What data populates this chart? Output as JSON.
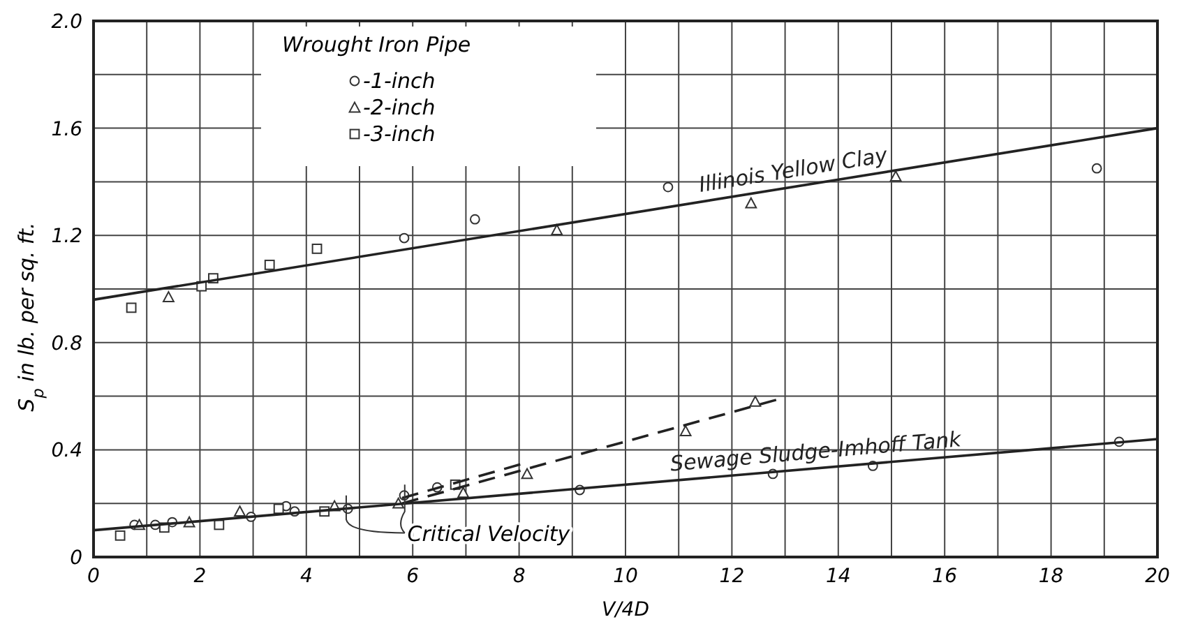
{
  "chart_data": {
    "type": "scatter",
    "xlabel": "V/4D",
    "ylabel": "S$_{p}$ in lb. per sq. ft.",
    "legend_title": "Wrought Iron Pipe",
    "legend": "top left",
    "grid": true,
    "xlim": [
      0,
      20
    ],
    "ylim": [
      0,
      2
    ],
    "xticks": [
      0,
      {
        "value": 1,
        "label": null
      },
      2,
      {
        "value": 3,
        "label": null
      },
      4,
      {
        "value": 5,
        "label": null
      },
      6,
      {
        "value": 7,
        "label": null
      },
      8,
      {
        "value": 9,
        "label": null
      },
      10,
      {
        "value": 11,
        "label": null
      },
      12,
      {
        "value": 13,
        "label": null
      },
      14,
      {
        "value": 15,
        "label": null
      },
      16,
      {
        "value": 17,
        "label": null
      },
      18,
      {
        "value": 19,
        "label": null
      },
      20
    ],
    "yticks": [
      0,
      {
        "value": 0.2,
        "label": null
      },
      0.4,
      {
        "value": 0.6,
        "label": null
      },
      0.8,
      {
        "value": 1,
        "label": null
      },
      1.2,
      {
        "value": 1.4,
        "label": null
      },
      1.6,
      {
        "value": 1.8,
        "label": null
      },
      {
        "value": 2,
        "label": "2.0"
      }
    ],
    "annotations": [
      "Critical Velocity"
    ],
    "series": [
      {
        "name": "-1-inch",
        "color": "#333333",
        "marker": "circle",
        "x": [
          5.84,
          7.17,
          10.8,
          18.86,
          0.77,
          1.16,
          1.48,
          2.96,
          3.62,
          3.78,
          4.78,
          5.84,
          6.46,
          9.14,
          12.77,
          14.65,
          19.28
        ],
        "values": [
          1.19,
          1.26,
          1.38,
          1.45,
          0.12,
          0.12,
          0.13,
          0.15,
          0.19,
          0.17,
          0.18,
          0.23,
          0.26,
          0.25,
          0.31,
          0.34,
          0.43
        ]
      },
      {
        "name": "-2-inch",
        "color": "#333333",
        "marker": "triangle",
        "x": [
          1.41,
          8.71,
          12.36,
          15.08,
          0.86,
          1.8,
          2.75,
          4.53,
          5.73,
          6.95,
          8.15,
          11.13,
          12.44
        ],
        "values": [
          0.97,
          1.22,
          1.32,
          1.42,
          0.12,
          0.13,
          0.17,
          0.19,
          0.2,
          0.24,
          0.31,
          0.47,
          0.58
        ]
      },
      {
        "name": "-3-inch",
        "color": "#333333",
        "marker": "square",
        "x": [
          0.71,
          2.03,
          2.25,
          3.31,
          4.2,
          0.5,
          1.33,
          2.36,
          3.48,
          4.34,
          6.8
        ],
        "values": [
          0.93,
          1.01,
          1.04,
          1.09,
          1.15,
          0.08,
          0.11,
          0.12,
          0.18,
          0.17,
          0.27
        ]
      },
      {
        "type": "line",
        "name": "Illinois Yellow Clay",
        "color": "#222222",
        "line_style": "solid",
        "x": [
          0,
          20
        ],
        "values": [
          0.96,
          1.6
        ]
      },
      {
        "type": "line",
        "name": "Sewage Sludge-Imhoff Tank",
        "color": "#222222",
        "line_style": "solid",
        "x": [
          0,
          20
        ],
        "values": [
          0.1,
          0.44
        ]
      },
      {
        "type": "line",
        "color": "#222222",
        "line_style": "dashed",
        "x": [
          5.8,
          8.1
        ],
        "values": [
          0.22,
          0.35
        ]
      },
      {
        "type": "line",
        "color": "#222222",
        "line_style": "dashed",
        "x": [
          5.8,
          12.9
        ],
        "values": [
          0.2,
          0.59
        ]
      }
    ]
  }
}
